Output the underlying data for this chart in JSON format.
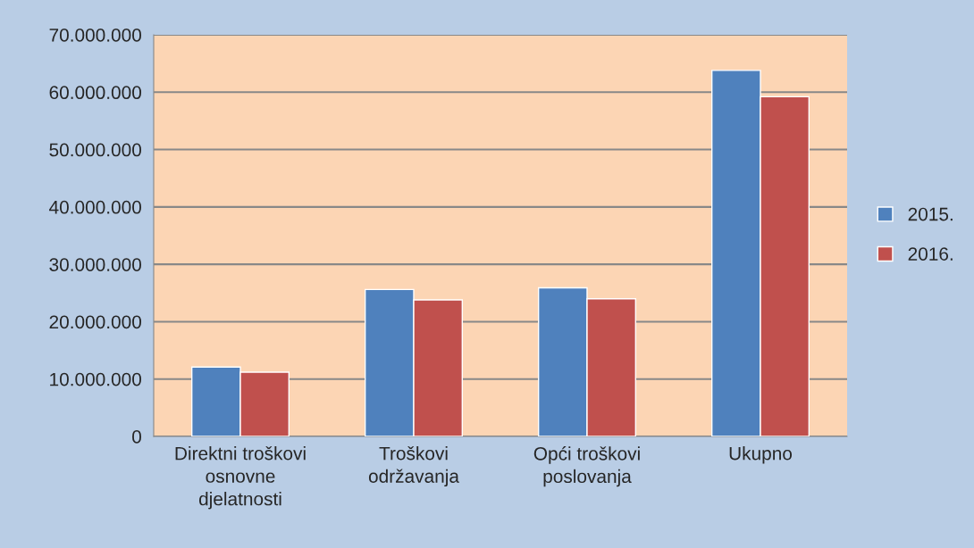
{
  "chart_data": {
    "type": "bar",
    "categories": [
      "Direktni troškovi osnovne djelatnosti",
      "Troškovi održavanja",
      "Opći troškovi poslovanja",
      "Ukupno"
    ],
    "series": [
      {
        "name": "2015.",
        "color": "#4f81bd",
        "values": [
          12100000,
          25600000,
          25900000,
          63800000
        ]
      },
      {
        "name": "2016.",
        "color": "#c0504d",
        "values": [
          11200000,
          23800000,
          24000000,
          59200000
        ]
      }
    ],
    "ylim": [
      0,
      70000000
    ],
    "yticks": [
      {
        "value": 0,
        "label": "0"
      },
      {
        "value": 10000000,
        "label": "10.000.000"
      },
      {
        "value": 20000000,
        "label": "20.000.000"
      },
      {
        "value": 30000000,
        "label": "30.000.000"
      },
      {
        "value": 40000000,
        "label": "40.000.000"
      },
      {
        "value": 50000000,
        "label": "50.000.000"
      },
      {
        "value": 60000000,
        "label": "60.000.000"
      },
      {
        "value": 70000000,
        "label": "70.000.000"
      }
    ],
    "grid": "y",
    "legend": "right"
  }
}
